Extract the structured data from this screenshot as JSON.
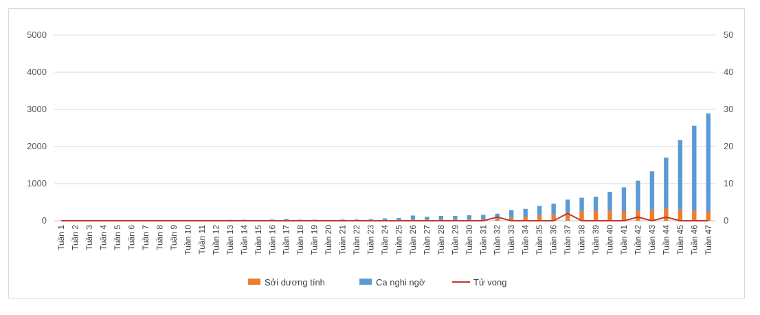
{
  "chart_data": {
    "type": "bar",
    "stacked": true,
    "title": "",
    "xlabel": "",
    "ylabel": "",
    "ylim": [
      0,
      5000
    ],
    "y2lim": [
      0,
      50
    ],
    "yticks": [
      "0",
      "1000",
      "2000",
      "3000",
      "4000",
      "5000"
    ],
    "y2ticks": [
      "0",
      "10",
      "20",
      "30",
      "40",
      "50"
    ],
    "grid": true,
    "legend_position": "bottom",
    "categories": [
      "Tuần 1",
      "Tuần 2",
      "Tuần 3",
      "Tuần 4",
      "Tuần 5",
      "Tuần 6",
      "Tuần 7",
      "Tuần 8",
      "Tuần 9",
      "Tuần 10",
      "Tuần 11",
      "Tuần 12",
      "Tuần 13",
      "Tuần 14",
      "Tuần 15",
      "Tuần 16",
      "Tuần 17",
      "Tuần 18",
      "Tuần 19",
      "Tuần 20",
      "Tuần 21",
      "Tuần 22",
      "Tuần 23",
      "Tuần 24",
      "Tuần 25",
      "Tuần 26",
      "Tuần 27",
      "Tuần 28",
      "Tuần 29",
      "Tuần 30",
      "Tuần 31",
      "Tuần 32",
      "Tuần 33",
      "Tuần 34",
      "Tuần 35",
      "Tuần 36",
      "Tuần 37",
      "Tuần 38",
      "Tuần 39",
      "Tuần 40",
      "Tuần 41",
      "Tuần 42",
      "Tuần 43",
      "Tuần 44",
      "Tuần 45",
      "Tuần 46",
      "Tuần 47"
    ],
    "series": [
      {
        "name": "Sởi dương tính",
        "kind": "bar",
        "axis": "left",
        "color": "#ED7D31",
        "values": [
          0,
          5,
          5,
          0,
          5,
          0,
          5,
          5,
          5,
          5,
          5,
          5,
          5,
          10,
          5,
          10,
          15,
          10,
          10,
          5,
          10,
          10,
          15,
          20,
          20,
          30,
          30,
          30,
          30,
          40,
          40,
          60,
          90,
          110,
          150,
          170,
          220,
          260,
          270,
          270,
          260,
          280,
          300,
          330,
          300,
          280,
          250
        ]
      },
      {
        "name": "Ca nghi ngờ",
        "kind": "bar",
        "axis": "left",
        "color": "#5B9BD5",
        "values": [
          5,
          10,
          10,
          5,
          10,
          5,
          10,
          10,
          10,
          15,
          15,
          15,
          20,
          20,
          15,
          25,
          35,
          20,
          20,
          10,
          25,
          25,
          30,
          45,
          55,
          110,
          80,
          100,
          100,
          110,
          120,
          130,
          200,
          210,
          250,
          290,
          350,
          360,
          380,
          510,
          640,
          800,
          1030,
          1370,
          1870,
          2280,
          2640
        ]
      },
      {
        "name": "Tử vong",
        "kind": "line",
        "axis": "right",
        "color": "#C0392B",
        "values": [
          0,
          0,
          0,
          0,
          0,
          0,
          0,
          0,
          0,
          0,
          0,
          0,
          0,
          0,
          0,
          0,
          0,
          0,
          0,
          0,
          0,
          0,
          0,
          0,
          0,
          0,
          0,
          0,
          0,
          0,
          0,
          1,
          0,
          0,
          0,
          0,
          2,
          0,
          0,
          0,
          0,
          1,
          0,
          1,
          0,
          0,
          0
        ]
      }
    ]
  }
}
